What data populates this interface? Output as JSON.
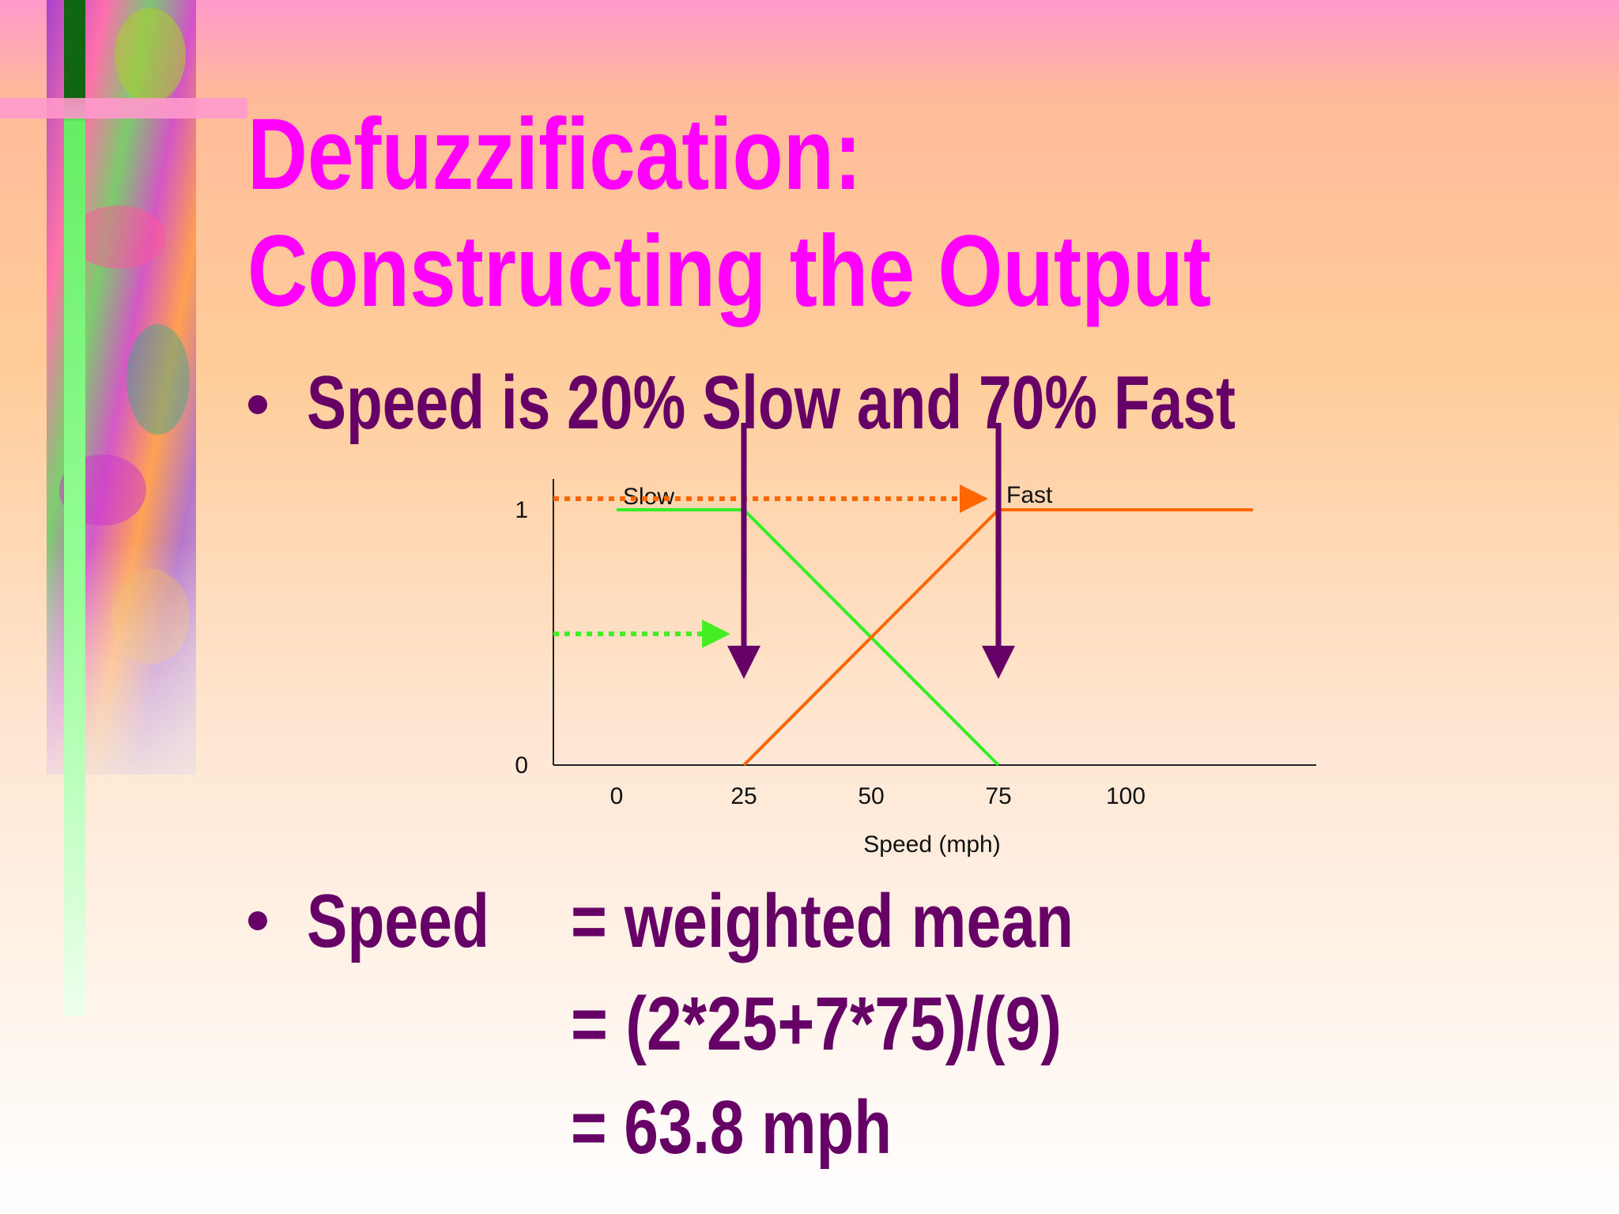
{
  "title": [
    "Defuzzification:",
    "Constructing the Output"
  ],
  "bullets": [
    {
      "text": "Speed is 20% Slow and 70% Fast"
    },
    {
      "label": "Speed",
      "lines": [
        "= weighted mean",
        "= (2*25+7*75)/(9)",
        "= 63.8 mph"
      ]
    }
  ],
  "chart_data": {
    "type": "line",
    "xlabel": "Speed (mph)",
    "xlim": [
      -12.5,
      137.5
    ],
    "ylim": [
      0,
      1.12
    ],
    "xticks": [
      0,
      25,
      50,
      75,
      100
    ],
    "yticks": [
      0,
      1
    ],
    "series": [
      {
        "name": "Slow",
        "color": "#33ee22",
        "x": [
          0,
          25,
          75
        ],
        "values": [
          1,
          1,
          0
        ]
      },
      {
        "name": "Fast",
        "color": "#ff6600",
        "x": [
          25,
          75,
          125
        ],
        "values": [
          0,
          1,
          1
        ]
      }
    ]
  }
}
